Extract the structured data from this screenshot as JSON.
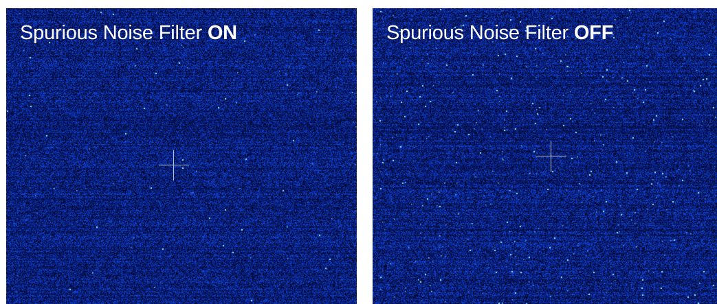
{
  "panels": [
    {
      "label_prefix": "Spurious Noise Filter ",
      "label_state": "ON",
      "noise_level": 0.12
    },
    {
      "label_prefix": "Spurious Noise Filter ",
      "label_state": "OFF",
      "noise_level": 0.55
    }
  ],
  "colors": {
    "background": "#0b1a5a",
    "noise_dim": "#1030a0",
    "noise_bright": "#7fe8ff",
    "crosshair": "#b9bfcf",
    "label": "#ffffff"
  }
}
